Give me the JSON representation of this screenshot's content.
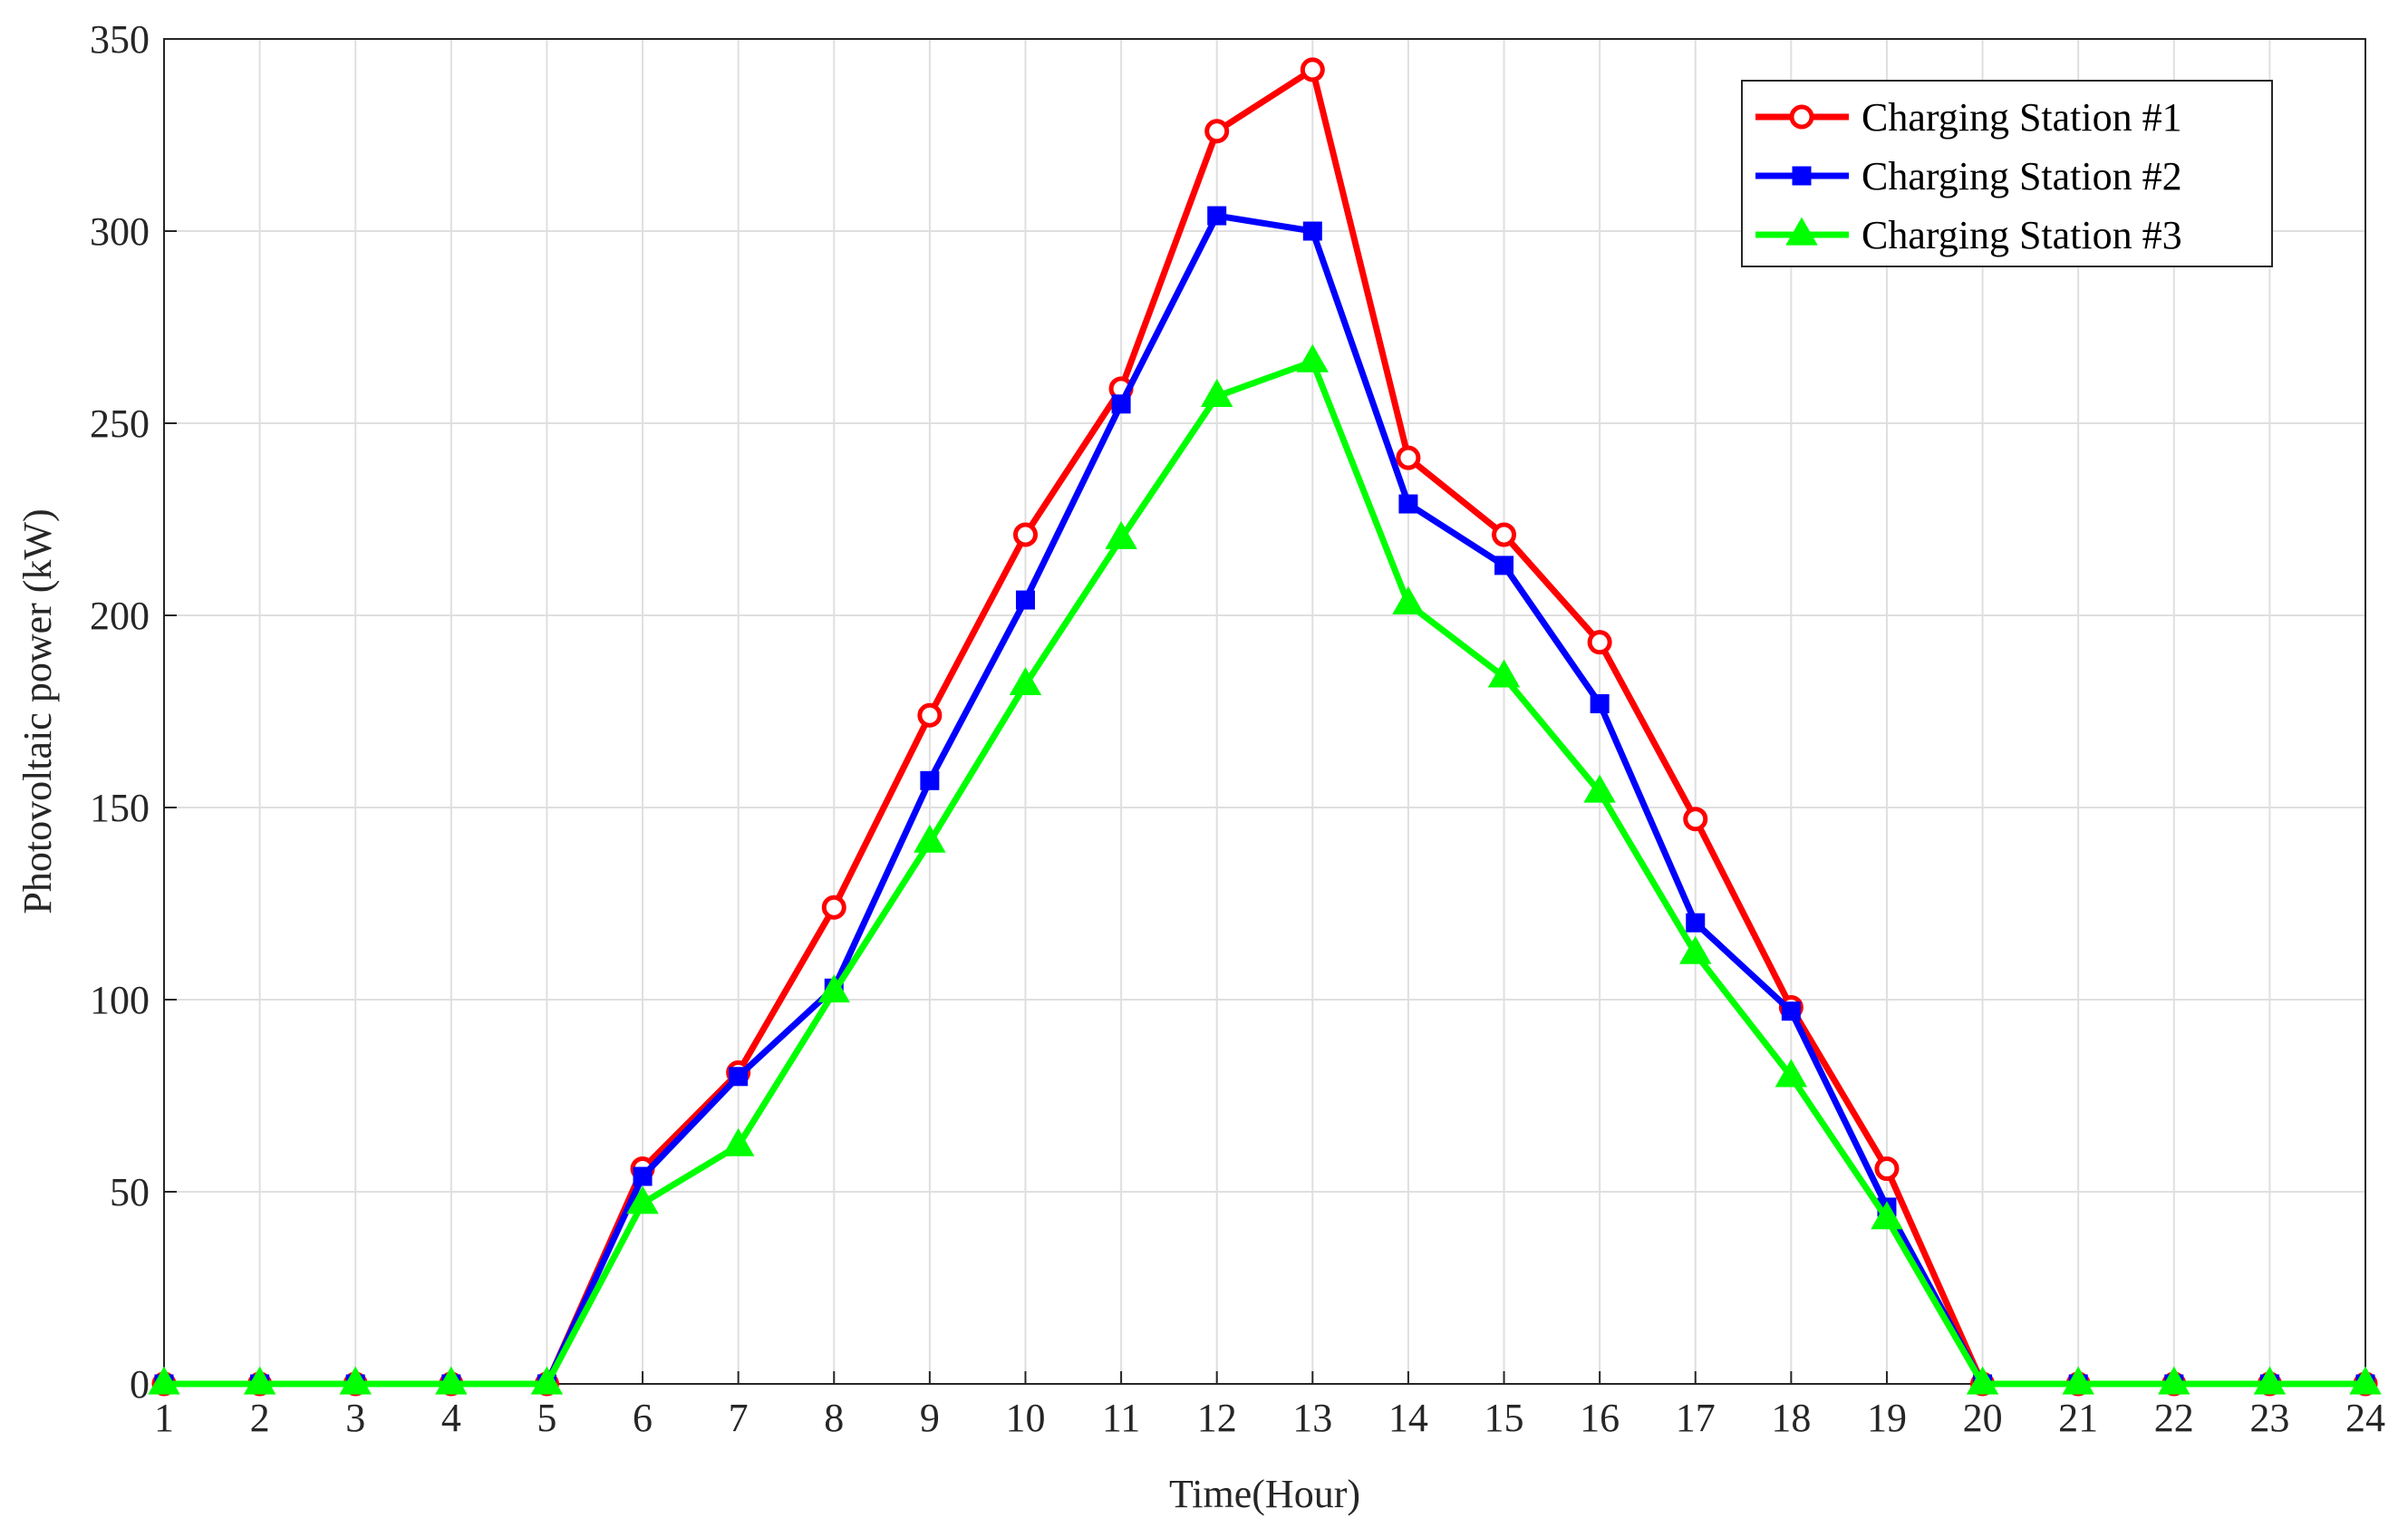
{
  "chart_data": {
    "type": "line",
    "title": "",
    "xlabel": "Time(Hour)",
    "ylabel": "Photovoltaic power (kW)",
    "x": [
      1,
      2,
      3,
      4,
      5,
      6,
      7,
      8,
      9,
      10,
      11,
      12,
      13,
      14,
      15,
      16,
      17,
      18,
      19,
      20,
      21,
      22,
      23,
      24
    ],
    "xlim": [
      1,
      24
    ],
    "ylim": [
      0,
      350
    ],
    "xticks": [
      "1",
      "2",
      "3",
      "4",
      "5",
      "6",
      "7",
      "8",
      "9",
      "10",
      "11",
      "12",
      "13",
      "14",
      "15",
      "16",
      "17",
      "18",
      "19",
      "20",
      "21",
      "22",
      "23",
      "24"
    ],
    "yticks": [
      "0",
      "50",
      "100",
      "150",
      "200",
      "250",
      "300",
      "350"
    ],
    "grid": true,
    "legend_position": "top-right",
    "series": [
      {
        "name": "Charging Station #1",
        "color": "#ff0000",
        "marker": "circle",
        "values": [
          0,
          0,
          0,
          0,
          0,
          56,
          81,
          124,
          174,
          221,
          259,
          326,
          342,
          241,
          221,
          193,
          147,
          98,
          56,
          0,
          0,
          0,
          0,
          0
        ]
      },
      {
        "name": "Charging Station #2",
        "color": "#0000ff",
        "marker": "square",
        "values": [
          0,
          0,
          0,
          0,
          0,
          54,
          80,
          103,
          157,
          204,
          255,
          304,
          300,
          229,
          213,
          177,
          120,
          97,
          46,
          0,
          0,
          0,
          0,
          0
        ]
      },
      {
        "name": "Charging Station #3",
        "color": "#00ff00",
        "marker": "triangle",
        "values": [
          0,
          0,
          0,
          0,
          0,
          47,
          62,
          102,
          141,
          182,
          220,
          257,
          266,
          203,
          184,
          154,
          112,
          80,
          43,
          0,
          0,
          0,
          0,
          0
        ]
      }
    ]
  }
}
